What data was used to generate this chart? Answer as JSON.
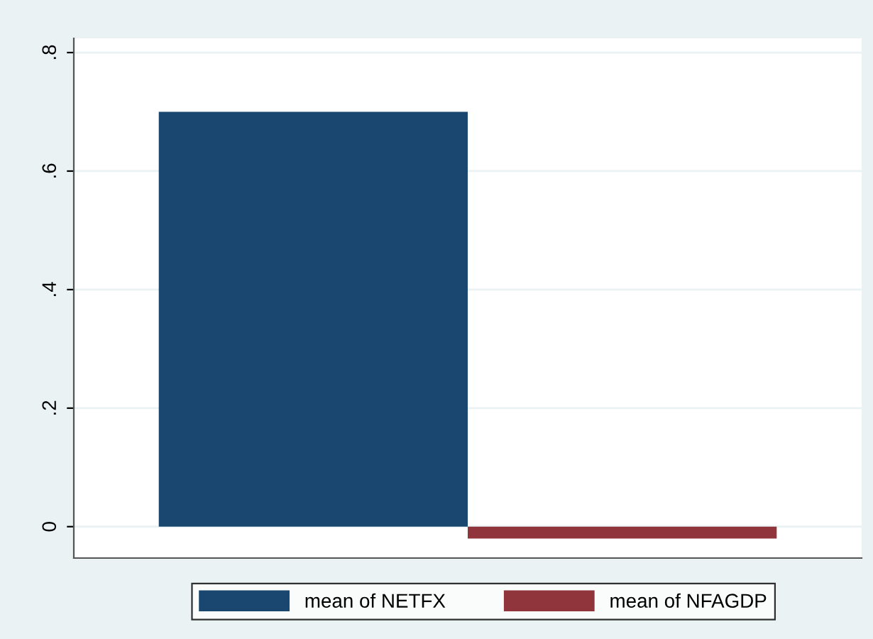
{
  "chart_data": {
    "type": "bar",
    "categories": [
      null
    ],
    "series": [
      {
        "name": "mean of NETFX",
        "color": "#1a476f",
        "values": [
          0.7
        ]
      },
      {
        "name": "mean of NFAGDP",
        "color": "#90353b",
        "values": [
          -0.02
        ]
      }
    ],
    "ylim": [
      -0.053,
      0.824
    ],
    "yticks": [
      {
        "value": 0,
        "label": "0"
      },
      {
        "value": 0.2,
        "label": ".2"
      },
      {
        "value": 0.4,
        "label": ".4"
      },
      {
        "value": 0.6,
        "label": ".6"
      },
      {
        "value": 0.8,
        "label": ".8"
      }
    ],
    "grid": "y",
    "legend": "bottom"
  }
}
